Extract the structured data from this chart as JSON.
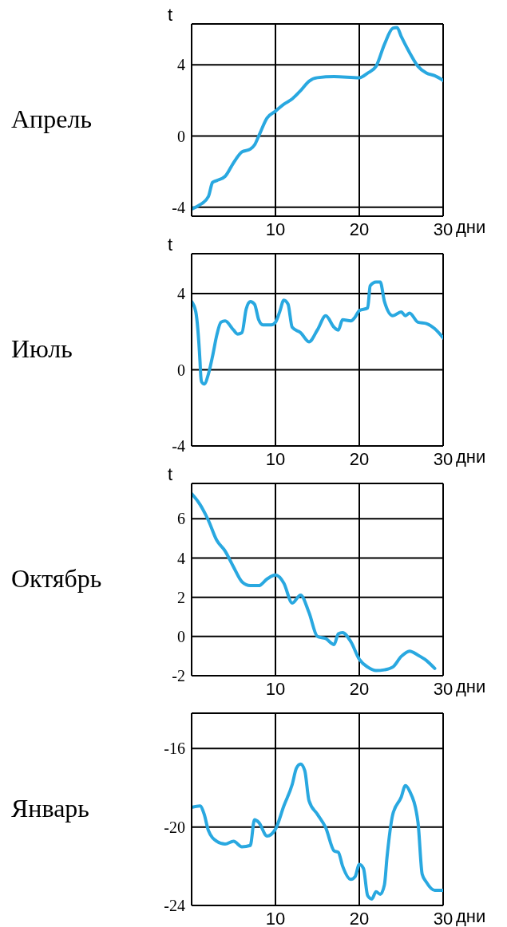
{
  "chart_data": [
    {
      "type": "line",
      "title": "Апрель",
      "ylabel": "t",
      "xlabel": "дни",
      "color": "#29a8e0",
      "line_style": "solid",
      "grid": true,
      "xlim": [
        0,
        30
      ],
      "xticks": [
        10,
        20,
        30
      ],
      "ylim": [
        -4.5,
        6.3
      ],
      "yticks": [
        -4,
        0,
        4
      ],
      "x": [
        0,
        1,
        2,
        2.5,
        3,
        4,
        5,
        6,
        7,
        7.5,
        8,
        9,
        10,
        11,
        12,
        13,
        14,
        15,
        17,
        20,
        21,
        22,
        23,
        24,
        24.5,
        25,
        26,
        27,
        28,
        29,
        30
      ],
      "values": [
        -4.1,
        -3.86,
        -3.4,
        -2.6,
        -2.5,
        -2.26,
        -1.5,
        -0.89,
        -0.73,
        -0.5,
        0,
        1.02,
        1.4,
        1.79,
        2.09,
        2.55,
        3.08,
        3.28,
        3.34,
        3.28,
        3.54,
        3.92,
        5.15,
        6.06,
        6.1,
        5.6,
        4.69,
        3.92,
        3.54,
        3.39,
        3.13
      ]
    },
    {
      "type": "line",
      "title": "Июль",
      "ylabel": "t",
      "xlabel": "дни",
      "color": "#29a8e0",
      "line_style": "solid",
      "grid": true,
      "xlim": [
        0,
        30
      ],
      "xticks": [
        10,
        20,
        30
      ],
      "ylim": [
        -4,
        6.1
      ],
      "yticks": [
        -4,
        0,
        4
      ],
      "x": [
        0,
        0.5,
        1,
        1.1,
        1.2,
        1.5,
        2,
        2.5,
        3,
        3.5,
        4,
        5,
        5.5,
        6,
        6.5,
        7,
        7.5,
        8,
        8.5,
        9.5,
        10,
        10.5,
        11,
        11.5,
        12,
        13,
        14,
        15,
        16,
        17,
        17.5,
        18,
        19,
        19.5,
        20,
        21,
        21.3,
        22,
        22.5,
        23,
        24,
        25,
        25.5,
        26,
        27,
        28,
        29,
        30
      ],
      "values": [
        3.59,
        3.04,
        0.45,
        -0.37,
        -0.64,
        -0.75,
        -0.23,
        0.72,
        1.82,
        2.5,
        2.57,
        2.09,
        1.88,
        1.95,
        3.18,
        3.59,
        3.45,
        2.63,
        2.36,
        2.36,
        2.5,
        3.04,
        3.66,
        3.45,
        2.23,
        1.95,
        1.47,
        2.09,
        2.84,
        2.23,
        2.09,
        2.63,
        2.57,
        2.77,
        3.11,
        3.25,
        4.41,
        4.61,
        4.61,
        3.59,
        2.84,
        3.04,
        2.84,
        2.98,
        2.5,
        2.43,
        2.16,
        1.68
      ]
    },
    {
      "type": "line",
      "title": "Октябрь",
      "ylabel": "t",
      "xlabel": "дни",
      "color": "#29a8e0",
      "line_style": "solid",
      "grid": true,
      "xlim": [
        0,
        30
      ],
      "xticks": [
        10,
        20,
        30
      ],
      "ylim": [
        -2,
        7.8
      ],
      "yticks": [
        -2,
        0,
        2,
        4,
        6
      ],
      "x": [
        0,
        1,
        2,
        3,
        4,
        5,
        6,
        7,
        8,
        9,
        10,
        11,
        12,
        13,
        14,
        15,
        16,
        17,
        17.5,
        18,
        19,
        20,
        21,
        22,
        23,
        24,
        25,
        26,
        27,
        28,
        29
      ],
      "values": [
        7.28,
        6.73,
        5.92,
        4.9,
        4.35,
        3.54,
        2.79,
        2.59,
        2.59,
        2.93,
        3.13,
        2.72,
        1.7,
        2.11,
        1.22,
        0,
        -0.11,
        -0.41,
        0.14,
        0.2,
        -0.27,
        -1.16,
        -1.56,
        -1.74,
        -1.7,
        -1.56,
        -1.02,
        -0.75,
        -0.95,
        -1.22,
        -1.63
      ]
    },
    {
      "type": "line",
      "title": "Январь",
      "xlabel": "дни",
      "color": "#29a8e0",
      "line_style": "solid",
      "grid": true,
      "xlim": [
        0,
        30
      ],
      "xticks": [
        10,
        20,
        30
      ],
      "ylim": [
        -24,
        -14.2
      ],
      "yticks": [
        -24,
        -20,
        -16
      ],
      "x": [
        0,
        1,
        1.5,
        2,
        3,
        4,
        5,
        6,
        7,
        7.5,
        8,
        9,
        10,
        11,
        12,
        12.5,
        13,
        13.5,
        14,
        15,
        16,
        17,
        17.5,
        18,
        19,
        19.5,
        20,
        20.5,
        21,
        21.5,
        22,
        22.5,
        23,
        23.3,
        24,
        25,
        25.5,
        26,
        27,
        27.5,
        28,
        29,
        30
      ],
      "values": [
        -19.0,
        -18.93,
        -19.35,
        -20.18,
        -20.73,
        -20.87,
        -20.73,
        -21.01,
        -20.94,
        -19.63,
        -19.76,
        -20.46,
        -20.11,
        -18.93,
        -17.83,
        -17.0,
        -16.79,
        -17.13,
        -18.66,
        -19.35,
        -20.04,
        -21.22,
        -21.29,
        -21.98,
        -22.67,
        -22.53,
        -21.91,
        -22.12,
        -23.5,
        -23.67,
        -23.3,
        -23.43,
        -22.95,
        -21.57,
        -19.35,
        -18.48,
        -17.89,
        -18.17,
        -19.76,
        -22.4,
        -22.81,
        -23.23,
        -23.23
      ]
    }
  ]
}
